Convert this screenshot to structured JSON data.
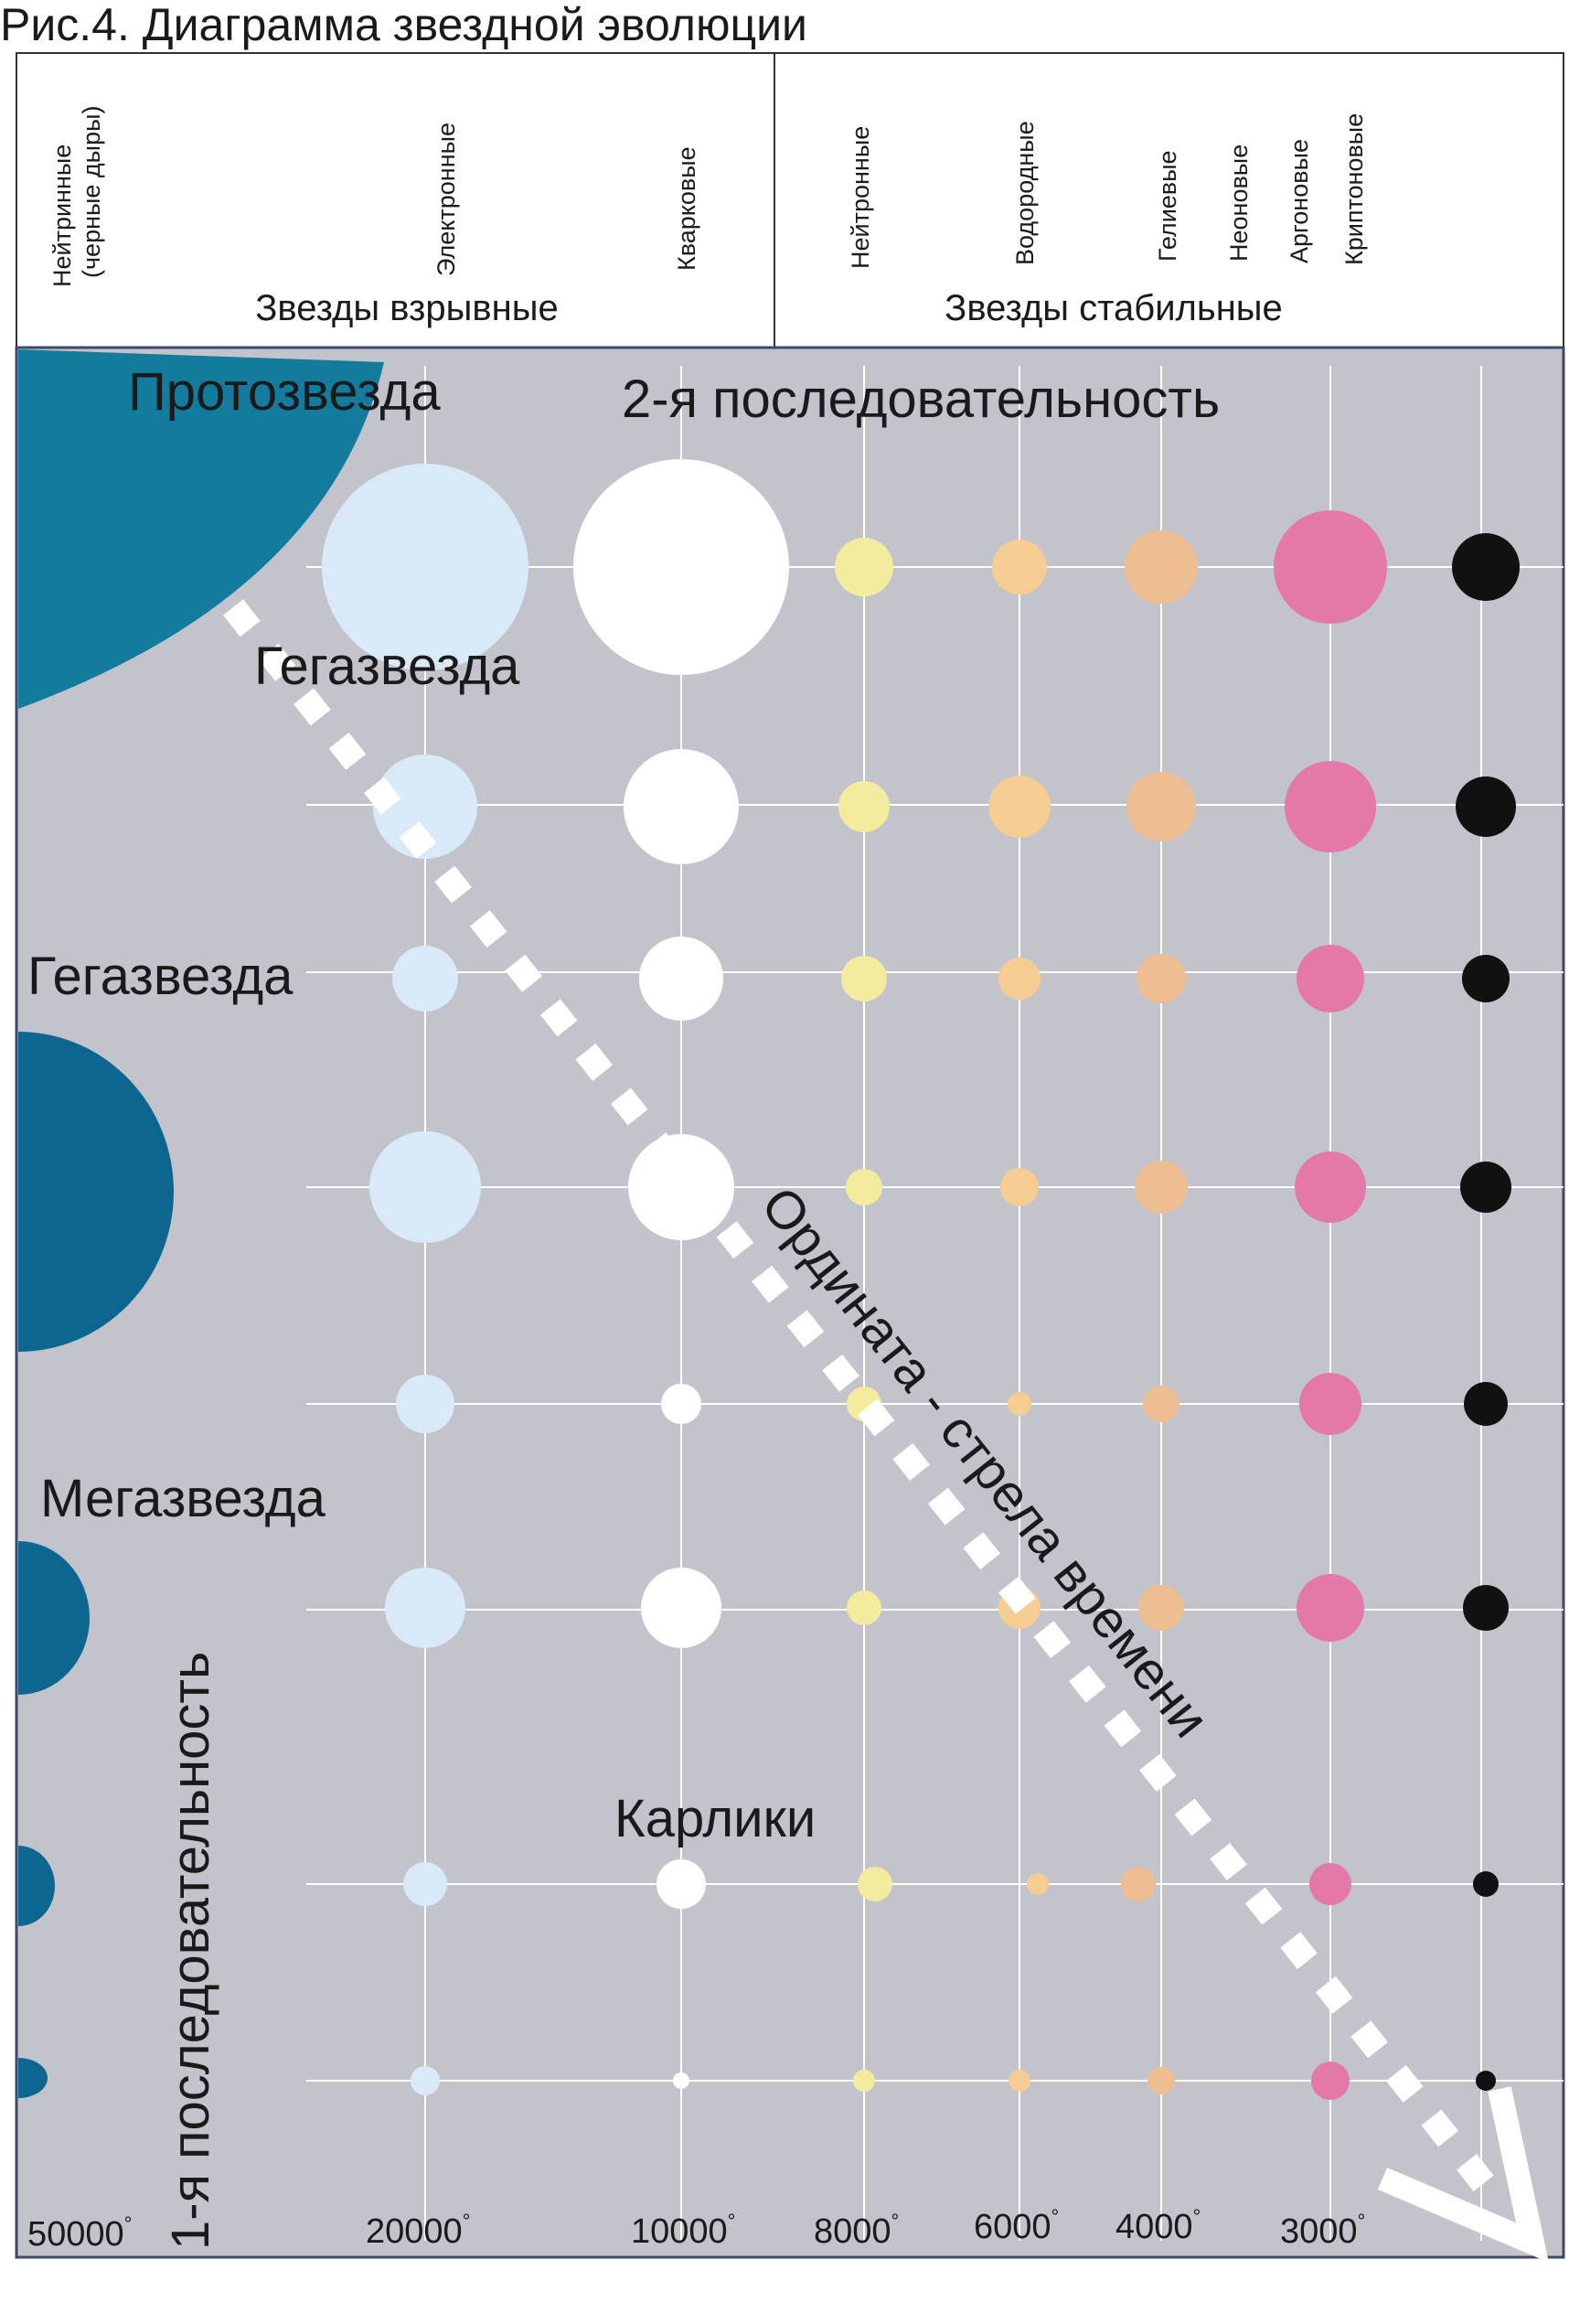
{
  "title": "Рис.4. Диаграмма звездной эволюции",
  "header": {
    "explosive": {
      "group_label": "Звезды взрывные",
      "types": [
        {
          "line1": "Нейтринные",
          "line2": "(черные дыры)"
        },
        {
          "line1": "Электронные"
        },
        {
          "line1": "Кварковые"
        }
      ]
    },
    "stable": {
      "group_label": "Звезды стабильные",
      "types": [
        {
          "line1": "Нейтронные"
        },
        {
          "line1": "Водородные"
        },
        {
          "line1": "Гелиевые"
        },
        {
          "line1": "Неоновые"
        },
        {
          "line1": "Аргоновые"
        },
        {
          "line1": "Криптоновые"
        }
      ]
    }
  },
  "labels": {
    "protostar": "Протозвезда",
    "second_sequence": "2-я последовательность",
    "gegastar_1": "Гегазвезда",
    "gegastar_2": "Гегазвезда",
    "megastar": "Мегазвезда",
    "dwarfs": "Карлики",
    "first_sequence": "1-я последовательность",
    "time_arrow": "Ордината - стрела времени"
  },
  "axis": {
    "temperatures": [
      "50000",
      "20000",
      "10000",
      "8000",
      "6000",
      "4000",
      "3000"
    ],
    "degree_mark": "°"
  },
  "colors": {
    "chart_bg": "#c3c3cb",
    "grid": "#ffffff",
    "protostar": "#137b9e",
    "sequence_blue": "#0d6690",
    "electron": "#d9e9f7",
    "quark": "#ffffff",
    "neutron": "#f3ec9f",
    "hydrogen": "#f5cc92",
    "helium": "#edbe91",
    "argon": "#e479a9",
    "krypton": "#111111",
    "arrow": "#ffffff"
  }
}
